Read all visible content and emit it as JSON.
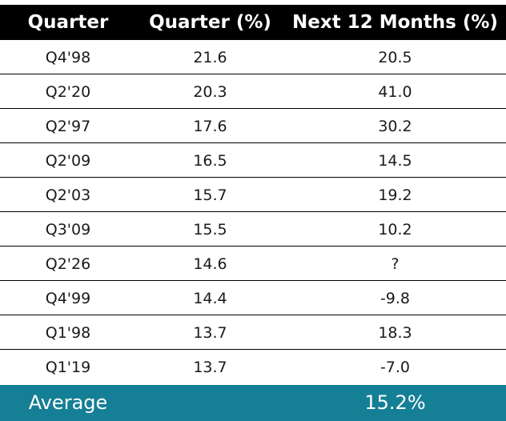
{
  "chart_data": {
    "type": "table",
    "columns": [
      "Quarter",
      "Quarter (%)",
      "Next 12 Months (%)"
    ],
    "rows": [
      [
        "Q4'98",
        "21.6",
        "20.5"
      ],
      [
        "Q2'20",
        "20.3",
        "41.0"
      ],
      [
        "Q2'97",
        "17.6",
        "30.2"
      ],
      [
        "Q2'09",
        "16.5",
        "14.5"
      ],
      [
        "Q2'03",
        "15.7",
        "19.2"
      ],
      [
        "Q3'09",
        "15.5",
        "10.2"
      ],
      [
        "Q2'26",
        "14.6",
        "?"
      ],
      [
        "Q4'99",
        "14.4",
        "-9.8"
      ],
      [
        "Q1'98",
        "13.7",
        "18.3"
      ],
      [
        "Q1'19",
        "13.7",
        "-7.0"
      ]
    ],
    "footer": {
      "label": "Average",
      "value": "15.2%"
    }
  },
  "colors": {
    "header_background": "#000000",
    "footer_background": "#157f96",
    "row_divider": "#000000"
  }
}
